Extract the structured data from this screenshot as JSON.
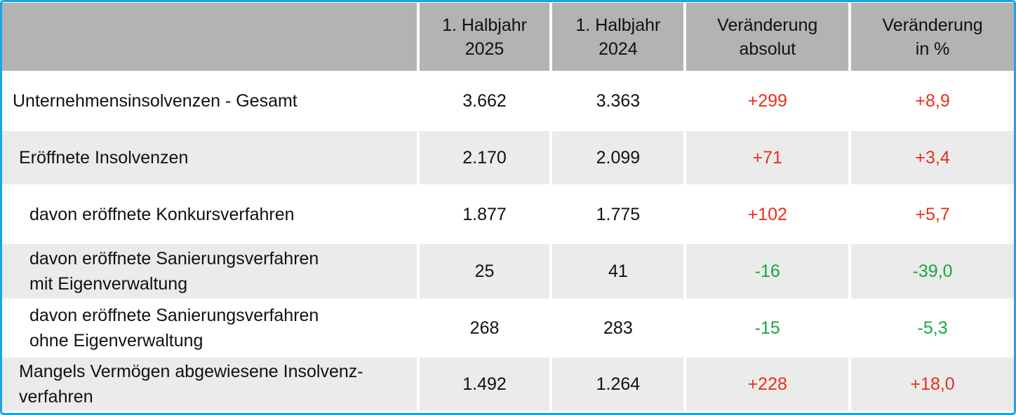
{
  "table": {
    "header": [
      [
        "1. Halbjahr",
        "2025"
      ],
      [
        "1. Halbjahr",
        "2024"
      ],
      [
        "Veränderung",
        "absolut"
      ],
      [
        "Veränderung",
        "in %"
      ]
    ],
    "rows": [
      {
        "label": [
          "Unternehmensinsolvenzen - Gesamt"
        ],
        "values": [
          "3.662",
          "3.363",
          "+299",
          "+8,9"
        ]
      },
      {
        "label": [
          "Eröffnete Insolvenzen"
        ],
        "values": [
          "2.170",
          "2.099",
          "+71",
          "+3,4"
        ]
      },
      {
        "label": [
          "davon eröffnete Konkursverfahren"
        ],
        "values": [
          "1.877",
          "1.775",
          "+102",
          "+5,7"
        ]
      },
      {
        "label": [
          "davon eröffnete Sanierungsverfahren",
          "mit Eigenverwaltung"
        ],
        "values": [
          "25",
          "41",
          "-16",
          "-39,0"
        ]
      },
      {
        "label": [
          "davon eröffnete Sanierungsverfahren",
          "ohne Eigenverwaltung"
        ],
        "values": [
          "268",
          "283",
          "-15",
          "-5,3"
        ]
      },
      {
        "label": [
          "Mangels Vermögen abgewiesene Insolvenz-",
          "verfahren"
        ],
        "values": [
          "1.492",
          "1.264",
          "+228",
          "+18,0"
        ]
      }
    ],
    "colors": {
      "positive": "#e8301c",
      "negative": "#16a545"
    }
  }
}
